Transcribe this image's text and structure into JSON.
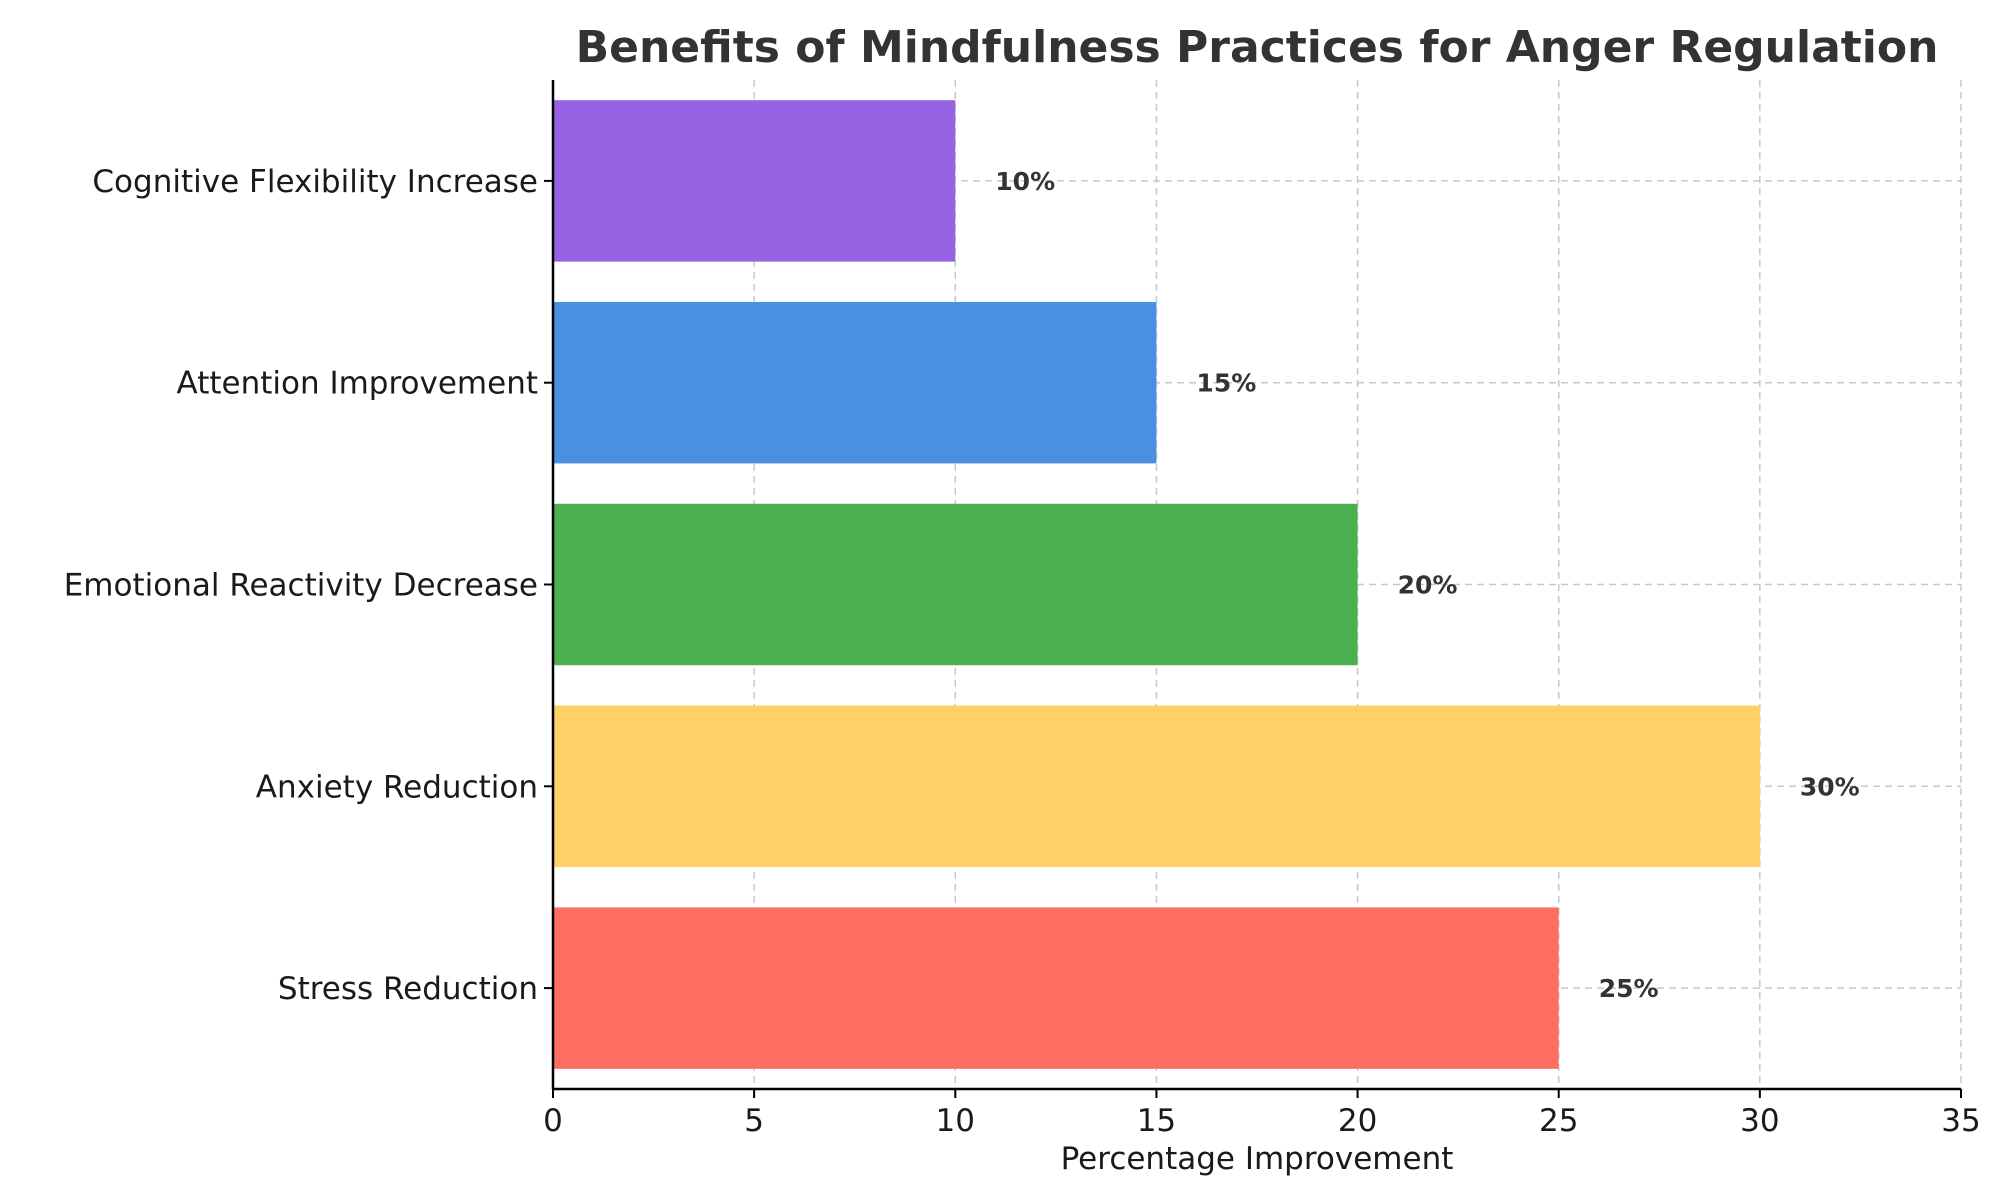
{
  "chart_data": {
    "type": "bar",
    "orientation": "horizontal",
    "title": "Benefits of Mindfulness Practices for Anger Regulation",
    "xlabel": "Percentage Improvement",
    "ylabel": "",
    "xlim": [
      0,
      35
    ],
    "xticks": [
      0,
      5,
      10,
      15,
      20,
      25,
      30,
      35
    ],
    "grid": true,
    "categories": [
      "Stress Reduction",
      "Anxiety Reduction",
      "Emotional Reactivity Decrease",
      "Attention Improvement",
      "Cognitive Flexibility Increase"
    ],
    "values": [
      25,
      30,
      20,
      15,
      10
    ],
    "value_labels": [
      "25%",
      "30%",
      "20%",
      "15%",
      "10%"
    ],
    "colors": [
      "#ff6f61",
      "#fed167",
      "#4caf50",
      "#4a90e2",
      "#9563e3"
    ]
  }
}
